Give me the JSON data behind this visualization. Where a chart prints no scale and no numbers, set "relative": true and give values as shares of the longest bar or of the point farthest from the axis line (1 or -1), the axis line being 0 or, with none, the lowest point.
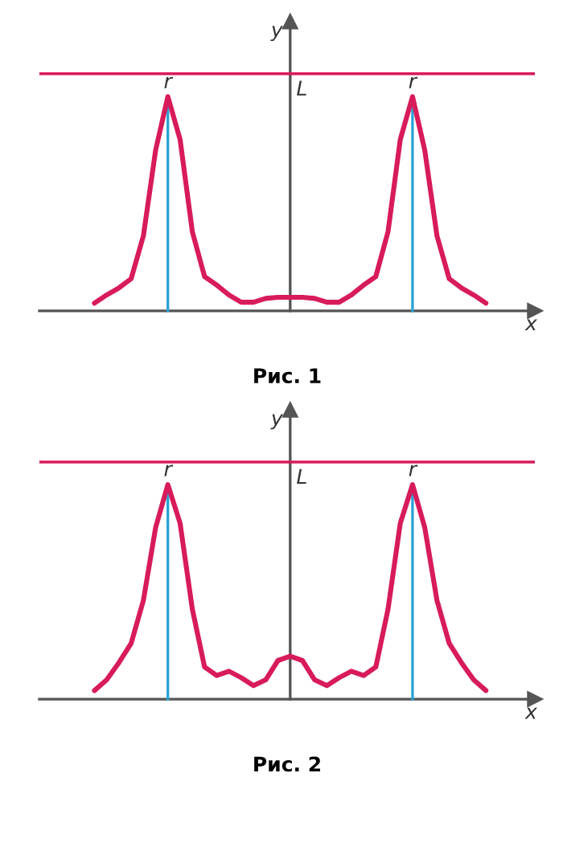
{
  "chart_data": [
    {
      "type": "line",
      "relative": true,
      "xlabel": "x",
      "ylabel": "y",
      "annotations": [
        "Рис. 1",
        {
          "text": "r",
          "y": 1.0
        }
      ],
      "categories": [
        null,
        null,
        null,
        null,
        null,
        null,
        null,
        null,
        null,
        null,
        null,
        null,
        null,
        null,
        null,
        null,
        null,
        null,
        null,
        null,
        null,
        null,
        null,
        null,
        null,
        null,
        null,
        null,
        null,
        null,
        null,
        null,
        null
      ],
      "series": [
        {
          "color": "#d81b5a",
          "values": [
            0.036,
            0.074,
            0.107,
            0.15,
            0.35,
            0.75,
            1.0,
            0.8,
            0.37,
            0.16,
            0.12,
            0.074,
            0.04,
            0.04,
            0.058,
            0.063,
            0.063,
            0.063,
            0.058,
            0.04,
            0.04,
            0.074,
            0.12,
            0.16,
            0.37,
            0.8,
            1.0,
            0.75,
            0.35,
            0.15,
            0.107,
            0.074,
            0.036
          ]
        }
      ],
      "ref_lines": [
        {
          "axis": "y",
          "value": 1.107,
          "label": "L",
          "color": "#d81b5a"
        }
      ]
    },
    {
      "type": "line",
      "relative": true,
      "xlabel": "x",
      "ylabel": "y",
      "annotations": [
        "Рис. 2",
        {
          "text": "r",
          "y": 1.0
        }
      ],
      "categories": [
        null,
        null,
        null,
        null,
        null,
        null,
        null,
        null,
        null,
        null,
        null,
        null,
        null,
        null,
        null,
        null,
        null,
        null,
        null,
        null,
        null,
        null,
        null,
        null,
        null,
        null,
        null,
        null,
        null,
        null,
        null,
        null,
        null
      ],
      "series": [
        {
          "color": "#d81b5a",
          "values": [
            0.04,
            0.09,
            0.17,
            0.26,
            0.46,
            0.8,
            1.0,
            0.82,
            0.42,
            0.15,
            0.11,
            0.13,
            0.1,
            0.063,
            0.09,
            0.18,
            0.2,
            0.18,
            0.09,
            0.063,
            0.1,
            0.13,
            0.11,
            0.15,
            0.42,
            0.82,
            1.0,
            0.8,
            0.46,
            0.26,
            0.17,
            0.09,
            0.04
          ]
        }
      ],
      "ref_lines": [
        {
          "axis": "y",
          "value": 1.105,
          "label": "L",
          "color": "#d81b5a"
        }
      ]
    }
  ]
}
